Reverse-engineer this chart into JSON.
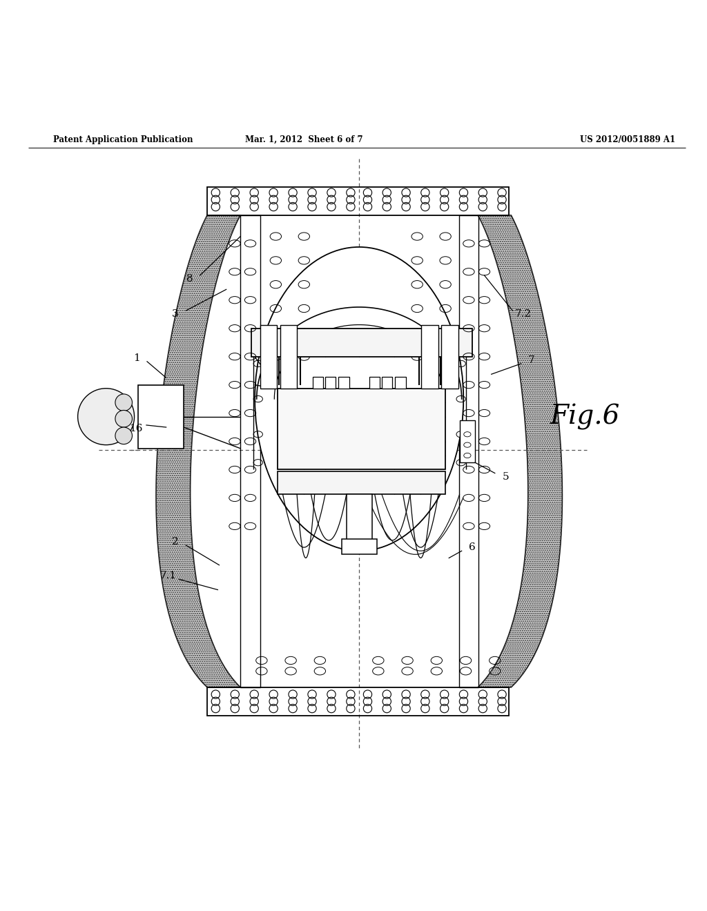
{
  "bg_color": "#ffffff",
  "header_left": "Patent Application Publication",
  "header_mid": "Mar. 1, 2012  Sheet 6 of 7",
  "header_right": "US 2012/0051889 A1",
  "fig_label": "Fig.6"
}
